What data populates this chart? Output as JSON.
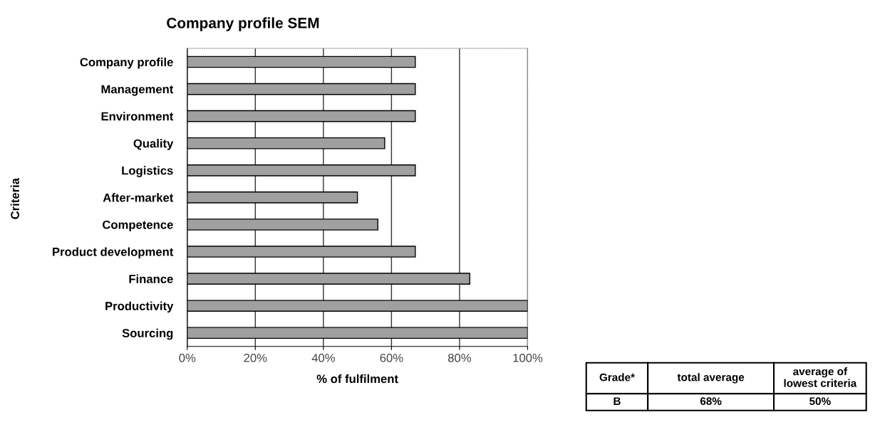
{
  "chart_data": {
    "type": "bar",
    "orientation": "horizontal",
    "title": "Company profile SEM",
    "xlabel": "% of fulfilment",
    "ylabel": "Criteria",
    "categories": [
      "Company profile",
      "Management",
      "Environment",
      "Quality",
      "Logistics",
      "After-market",
      "Competence",
      "Product development",
      "Finance",
      "Productivity",
      "Sourcing"
    ],
    "series": [
      {
        "color": "#a0a0a0",
        "values": [
          67,
          67,
          67,
          58,
          67,
          50,
          56,
          67,
          83,
          100,
          100
        ]
      }
    ],
    "xlim": [
      0,
      100
    ],
    "xticks": [
      {
        "value": 0,
        "label": "0%"
      },
      {
        "value": 20,
        "label": "20%"
      },
      {
        "value": 40,
        "label": "40%"
      },
      {
        "value": 60,
        "label": "60%"
      },
      {
        "value": 80,
        "label": "80%"
      },
      {
        "value": 100,
        "label": "100%"
      }
    ],
    "grid": "x",
    "legend": false,
    "annotations": [
      "Grade*",
      "total average",
      "average of\nlowest criteria",
      "B",
      "68%",
      "50%"
    ]
  }
}
